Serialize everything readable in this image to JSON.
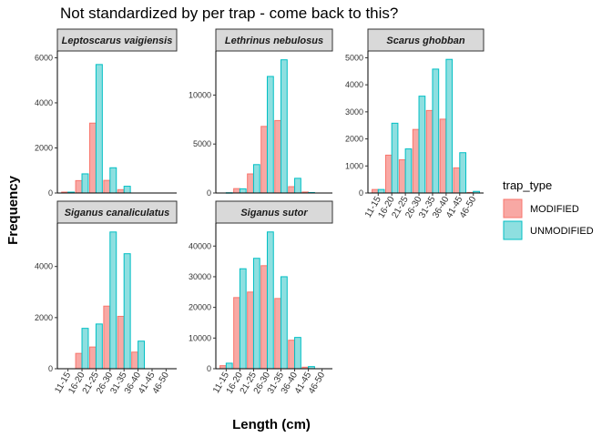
{
  "chart_data": {
    "type": "bar",
    "title": "Not standardized by per trap - come back to this?",
    "xlabel": "Length (cm)",
    "ylabel": "Frequency",
    "categories": [
      "11-15",
      "16-20",
      "21-25",
      "26-30",
      "31-35",
      "36-40",
      "41-45",
      "46-50"
    ],
    "legend": {
      "title": "trap_type",
      "placement": "right",
      "items": [
        {
          "name": "MODIFIED",
          "fill": "#F8A8A4",
          "stroke": "#F8766D"
        },
        {
          "name": "UNMODIFIED",
          "fill": "#8EDFE0",
          "stroke": "#00BFC4"
        }
      ]
    },
    "grid": false,
    "facets": [
      {
        "strip": "Leptoscarus vaigiensis",
        "ylim": [
          0,
          6300
        ],
        "yticks": [
          0,
          2000,
          4000,
          6000
        ],
        "yticklabels": [
          "0",
          "2000",
          "4000",
          "6000"
        ],
        "show_x_ticks": false,
        "series": [
          {
            "name": "MODIFIED",
            "values": [
              40,
              550,
              3100,
              560,
              150,
              0,
              0,
              0
            ]
          },
          {
            "name": "UNMODIFIED",
            "values": [
              40,
              850,
              5700,
              1120,
              300,
              0,
              0,
              0
            ]
          }
        ]
      },
      {
        "strip": "Lethrinus nebulosus",
        "ylim": [
          0,
          14500
        ],
        "yticks": [
          0,
          5000,
          10000
        ],
        "yticklabels": [
          "0",
          "5000",
          "10000"
        ],
        "show_x_ticks": false,
        "series": [
          {
            "name": "MODIFIED",
            "values": [
              0,
              450,
              1950,
              6800,
              7400,
              650,
              100,
              0
            ]
          },
          {
            "name": "UNMODIFIED",
            "values": [
              30,
              430,
              2900,
              11900,
              13600,
              1500,
              50,
              0
            ]
          }
        ]
      },
      {
        "strip": "Scarus ghobban",
        "ylim": [
          0,
          5250
        ],
        "yticks": [
          0,
          1000,
          2000,
          3000,
          4000,
          5000
        ],
        "yticklabels": [
          "0",
          "1000",
          "2000",
          "3000",
          "4000",
          "5000"
        ],
        "show_x_ticks": true,
        "series": [
          {
            "name": "MODIFIED",
            "values": [
              130,
              1400,
              1230,
              2350,
              3050,
              2730,
              930,
              20
            ]
          },
          {
            "name": "UNMODIFIED",
            "values": [
              130,
              2580,
              1630,
              3580,
              4580,
              4940,
              1490,
              60
            ]
          }
        ]
      },
      {
        "strip": "Siganus canaliculatus",
        "ylim": [
          0,
          5700
        ],
        "yticks": [
          0,
          2000,
          4000
        ],
        "yticklabels": [
          "0",
          "2000",
          "4000"
        ],
        "show_x_ticks": true,
        "series": [
          {
            "name": "MODIFIED",
            "values": [
              0,
              600,
              850,
              2450,
              2050,
              650,
              0,
              0
            ]
          },
          {
            "name": "UNMODIFIED",
            "values": [
              0,
              1580,
              1750,
              5350,
              4500,
              1080,
              0,
              0
            ]
          }
        ]
      },
      {
        "strip": "Siganus sutor",
        "ylim": [
          0,
          47500
        ],
        "yticks": [
          0,
          10000,
          20000,
          30000,
          40000
        ],
        "yticklabels": [
          "0",
          "10000",
          "20000",
          "30000",
          "40000"
        ],
        "show_x_ticks": true,
        "series": [
          {
            "name": "MODIFIED",
            "values": [
              1000,
              23200,
              25000,
              33600,
              22900,
              9300,
              500,
              0
            ]
          },
          {
            "name": "UNMODIFIED",
            "values": [
              1800,
              32600,
              36000,
              44600,
              30000,
              10200,
              700,
              0
            ]
          }
        ]
      }
    ]
  }
}
